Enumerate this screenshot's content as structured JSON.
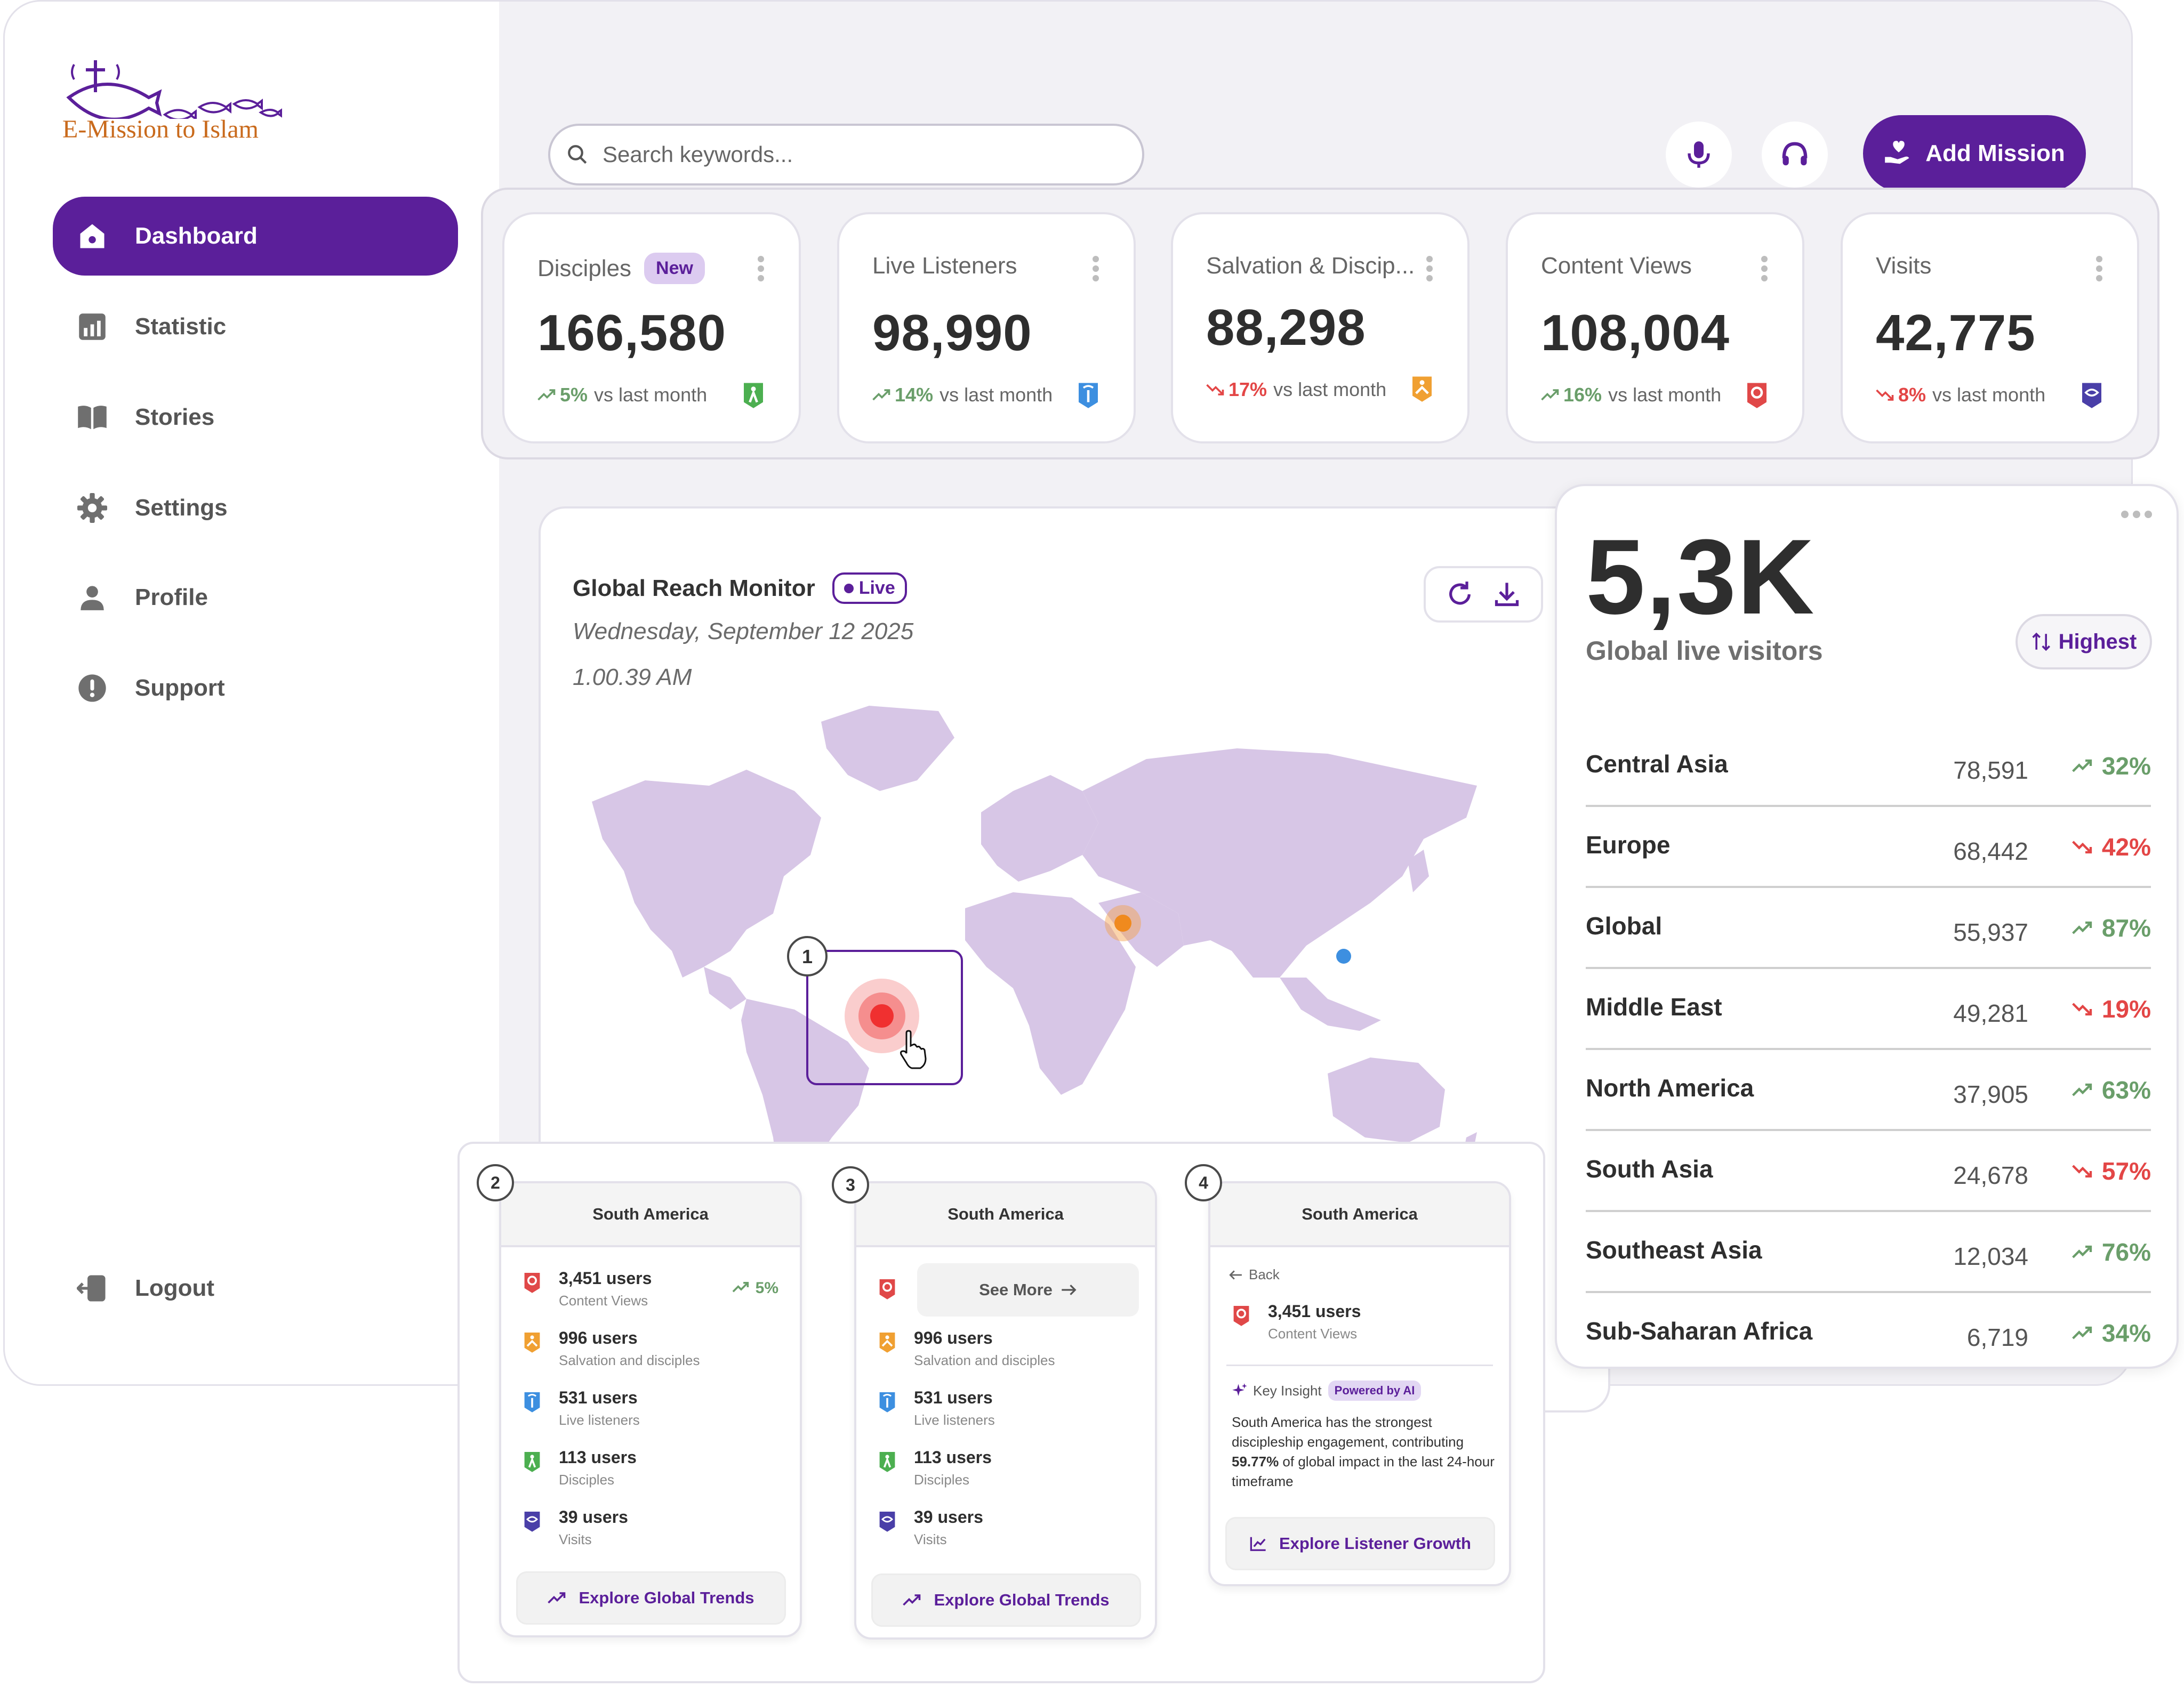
{
  "brand": {
    "logo_text": "E-Mission to Islam"
  },
  "sidebar": {
    "items": [
      {
        "label": "Dashboard",
        "icon": "home-icon",
        "active": true
      },
      {
        "label": "Statistic",
        "icon": "chart-icon",
        "active": false
      },
      {
        "label": "Stories",
        "icon": "book-icon",
        "active": false
      },
      {
        "label": "Settings",
        "icon": "gear-icon",
        "active": false
      },
      {
        "label": "Profile",
        "icon": "user-icon",
        "active": false
      },
      {
        "label": "Support",
        "icon": "alert-icon",
        "active": false
      }
    ],
    "logout_label": "Logout"
  },
  "header": {
    "search_placeholder": "Search keywords...",
    "add_mission_label": "Add Mission"
  },
  "stats": [
    {
      "title": "Disciples",
      "badge": "New",
      "value": "166,580",
      "change": "5%",
      "trend": "up",
      "suffix": "vs last month",
      "icon": "disciples-icon",
      "icon_color": "#4caf50"
    },
    {
      "title": "Live Listeners",
      "value": "98,990",
      "change": "14%",
      "trend": "up",
      "suffix": "vs last month",
      "icon": "listeners-icon",
      "icon_color": "#3d8fe0"
    },
    {
      "title": "Salvation & Discip...",
      "value": "88,298",
      "change": "17%",
      "trend": "down",
      "suffix": "vs last month",
      "icon": "salvation-icon",
      "icon_color": "#f0a032"
    },
    {
      "title": "Content Views",
      "value": "108,004",
      "change": "16%",
      "trend": "up",
      "suffix": "vs last month",
      "icon": "content-views-icon",
      "icon_color": "#e04848"
    },
    {
      "title": "Visits",
      "value": "42,775",
      "change": "8%",
      "trend": "down",
      "suffix": "vs last month",
      "icon": "visits-icon",
      "icon_color": "#4a3fa8"
    }
  ],
  "map": {
    "title": "Global Reach Monitor",
    "live_label": "Live",
    "date": "Wednesday, September 12 2025",
    "time": "1.00.39 AM",
    "highlight_step": "1"
  },
  "visitors": {
    "value": "5,3K",
    "label": "Global live visitors",
    "sort_label": "Highest",
    "regions": [
      {
        "name": "Central Asia",
        "count": "78,591",
        "change": "32%",
        "trend": "up"
      },
      {
        "name": "Europe",
        "count": "68,442",
        "change": "42%",
        "trend": "down"
      },
      {
        "name": "Global",
        "count": "55,937",
        "change": "87%",
        "trend": "up"
      },
      {
        "name": "Middle East",
        "count": "49,281",
        "change": "19%",
        "trend": "down"
      },
      {
        "name": "North America",
        "count": "37,905",
        "change": "63%",
        "trend": "up"
      },
      {
        "name": "South Asia",
        "count": "24,678",
        "change": "57%",
        "trend": "down"
      },
      {
        "name": "Southeast Asia",
        "count": "12,034",
        "change": "76%",
        "trend": "up"
      },
      {
        "name": "Sub-Saharan Africa",
        "count": "6,719",
        "change": "34%",
        "trend": "up"
      }
    ]
  },
  "region_cards": {
    "region": "South America",
    "metrics": [
      {
        "value": "3,451 users",
        "label": "Content Views",
        "icon": "content-views-icon",
        "color": "#e04848"
      },
      {
        "value": "996 users",
        "label": "Salvation and disciples",
        "icon": "salvation-icon",
        "color": "#f0a032"
      },
      {
        "value": "531 users",
        "label": "Live listeners",
        "icon": "listeners-icon",
        "color": "#3d8fe0"
      },
      {
        "value": "113 users",
        "label": "Disciples",
        "icon": "disciples-icon",
        "color": "#4caf50"
      },
      {
        "value": "39 users",
        "label": "Visits",
        "icon": "visits-icon",
        "color": "#4a3fa8"
      }
    ],
    "first_change": "5%",
    "steps": [
      "2",
      "3",
      "4"
    ],
    "explore_global": "Explore Global Trends",
    "see_more": "See More",
    "back": "Back",
    "insight_label": "Key Insight",
    "powered_by": "Powered by AI",
    "insight_before": "South America has the strongest discipleship engagement, contributing",
    "insight_bold": "59.77%",
    "insight_after": "of global impact in the last 24-hour timeframe",
    "explore_listener": "Explore Listener Growth"
  }
}
